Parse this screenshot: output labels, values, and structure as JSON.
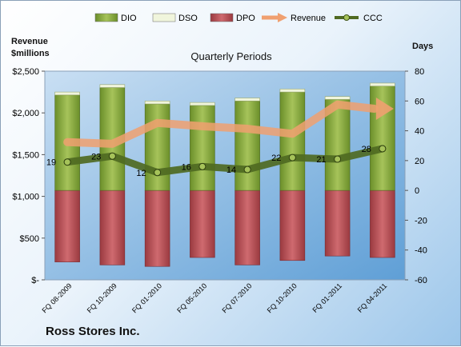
{
  "chart_data": {
    "type": "bar",
    "title": "Quarterly Periods",
    "company": "Ross Stores Inc.",
    "ylabel_left": "Revenue $millions",
    "ylabel_right": "Days",
    "ylim_left": [
      0,
      2500
    ],
    "ylim_right": [
      -60,
      80
    ],
    "yticks_left": [
      "$-",
      "$500",
      "$1,000",
      "$1,500",
      "$2,000",
      "$2,500"
    ],
    "yticks_right": [
      "-60",
      "-40",
      "-20",
      "0",
      "20",
      "40",
      "60",
      "80"
    ],
    "categories": [
      "FQ 08-2009",
      "FQ 10-2009",
      "FQ 01-2010",
      "FQ 05-2010",
      "FQ 07-2010",
      "FQ 10-2010",
      "FQ 01-2011",
      "FQ 04-2011"
    ],
    "series": [
      {
        "name": "DIO",
        "type": "bar",
        "axis": "right",
        "color": "#7fa23a",
        "values": [
          64,
          69,
          58,
          57,
          60,
          66,
          61,
          70
        ]
      },
      {
        "name": "DSO",
        "type": "bar",
        "axis": "right",
        "color": "#f0f5dc",
        "values": [
          2,
          2,
          2,
          2,
          2,
          2,
          2,
          2
        ]
      },
      {
        "name": "DPO",
        "type": "bar",
        "axis": "right",
        "color": "#b8474d",
        "values": [
          -48,
          -50,
          -51,
          -45,
          -50,
          -47,
          -44,
          -45
        ]
      },
      {
        "name": "Revenue",
        "type": "line",
        "axis": "left",
        "color": "#f0a070",
        "values": [
          1650,
          1630,
          1880,
          1840,
          1810,
          1750,
          2100,
          2050
        ]
      },
      {
        "name": "CCC",
        "type": "line",
        "axis": "right",
        "color": "#4f6a22",
        "values": [
          19,
          23,
          12,
          16,
          14,
          22,
          21,
          28
        ]
      }
    ],
    "data_labels": [
      "19",
      "23",
      "12",
      "16",
      "14",
      "22",
      "21",
      "28"
    ],
    "legend_position": "top",
    "grid": false
  }
}
